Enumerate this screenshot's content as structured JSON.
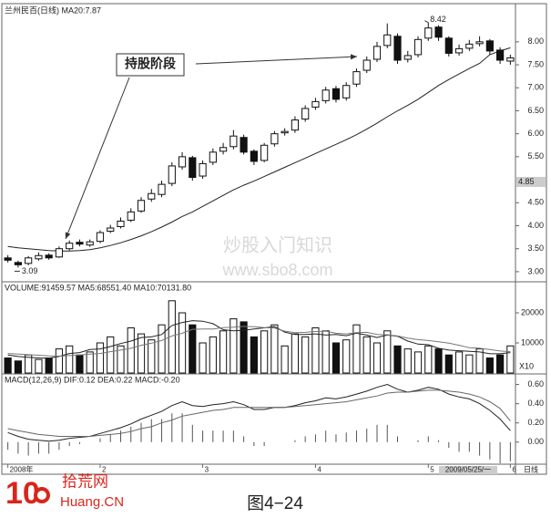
{
  "chart_data": [
    {
      "type": "candlestick",
      "title": "兰州民百(日线) MA20:7.87",
      "open": [
        3.3,
        3.2,
        3.18,
        3.28,
        3.36,
        3.32,
        3.5,
        3.64,
        3.58,
        3.66,
        3.88,
        3.98,
        4.12,
        4.32,
        4.58,
        4.68,
        4.92,
        5.28,
        5.48,
        5.08,
        5.38,
        5.62,
        5.72,
        5.92,
        5.62,
        5.42,
        5.78,
        6.02,
        6.08,
        6.32,
        6.58,
        6.72,
        6.98,
        6.78,
        7.08,
        7.38,
        7.62,
        7.92,
        8.12,
        7.62,
        7.72,
        8.08,
        8.32,
        8.08,
        7.76,
        7.86,
        7.96,
        8.02,
        7.82,
        7.58
      ],
      "high": [
        3.36,
        3.24,
        3.34,
        3.42,
        3.4,
        3.55,
        3.68,
        3.7,
        3.7,
        3.9,
        4.02,
        4.18,
        4.38,
        4.62,
        4.8,
        4.98,
        5.38,
        5.6,
        5.52,
        5.42,
        5.68,
        5.8,
        6.08,
        5.98,
        5.66,
        5.8,
        6.06,
        6.12,
        6.38,
        6.62,
        6.78,
        7.02,
        7.04,
        7.12,
        7.42,
        7.68,
        8.0,
        8.4,
        8.18,
        7.8,
        8.12,
        8.42,
        8.36,
        8.12,
        7.94,
        8.04,
        8.12,
        8.06,
        7.88,
        7.72
      ],
      "low": [
        3.2,
        3.09,
        3.14,
        3.24,
        3.26,
        3.3,
        3.46,
        3.55,
        3.54,
        3.62,
        3.84,
        3.94,
        4.08,
        4.28,
        4.52,
        4.62,
        4.86,
        5.22,
        4.98,
        5.02,
        5.32,
        5.55,
        5.66,
        5.55,
        5.32,
        5.38,
        5.72,
        5.96,
        6.02,
        6.26,
        6.52,
        6.66,
        6.68,
        6.72,
        7.02,
        7.32,
        7.56,
        7.86,
        7.52,
        7.55,
        7.66,
        8.02,
        8.02,
        7.68,
        7.7,
        7.8,
        7.9,
        7.72,
        7.52,
        7.5
      ],
      "close": [
        3.25,
        3.15,
        3.3,
        3.35,
        3.3,
        3.5,
        3.62,
        3.6,
        3.65,
        3.85,
        3.95,
        4.1,
        4.3,
        4.55,
        4.7,
        4.9,
        5.3,
        5.5,
        5.05,
        5.35,
        5.6,
        5.7,
        5.95,
        5.6,
        5.4,
        5.75,
        6.0,
        6.05,
        6.3,
        6.55,
        6.7,
        6.95,
        6.75,
        7.05,
        7.35,
        7.6,
        7.9,
        8.15,
        7.6,
        7.7,
        8.05,
        8.3,
        8.1,
        7.75,
        7.85,
        7.95,
        8.0,
        7.8,
        7.6,
        7.65
      ],
      "series": [
        {
          "color": "#222222",
          "values": [
            3.55,
            3.52,
            3.5,
            3.48,
            3.46,
            3.45,
            3.45,
            3.46,
            3.48,
            3.52,
            3.57,
            3.63,
            3.7,
            3.78,
            3.87,
            3.97,
            4.08,
            4.2,
            4.3,
            4.42,
            4.54,
            4.66,
            4.78,
            4.88,
            4.97,
            5.07,
            5.17,
            5.27,
            5.37,
            5.47,
            5.57,
            5.67,
            5.77,
            5.87,
            5.98,
            6.1,
            6.23,
            6.37,
            6.5,
            6.62,
            6.75,
            6.9,
            7.05,
            7.18,
            7.3,
            7.42,
            7.53,
            7.72,
            7.8,
            7.87
          ]
        }
      ],
      "up_color": "#ffffff",
      "down_color": "#111111",
      "ylim": [
        2.8,
        8.79
      ],
      "yticks": [
        {
          "value": 3,
          "label": "3.00"
        },
        {
          "value": 3.5,
          "label": "3.50"
        },
        {
          "value": 4,
          "label": "4.00"
        },
        {
          "value": 4.5,
          "label": "4.50"
        },
        {
          "value": 5.5,
          "label": "5.50"
        },
        {
          "value": 6,
          "label": "6.00"
        },
        {
          "value": 6.5,
          "label": "6.50"
        },
        {
          "value": 7,
          "label": "7.00"
        },
        {
          "value": 7.5,
          "label": "7.50"
        },
        {
          "value": 8,
          "label": "8.00"
        }
      ],
      "price_marker": 4.85,
      "annotation": "持股阶段",
      "watermark": [
        "炒股入门知识",
        "www.sbo8.com"
      ]
    },
    {
      "type": "bar",
      "title": "VOLUME:91459.57 MA5:68551.40 MA10:70131.80",
      "values": [
        5000,
        4000,
        6000,
        4500,
        5000,
        8000,
        9000,
        6000,
        7000,
        10000,
        12000,
        9000,
        15000,
        13000,
        11000,
        16000,
        24000,
        20000,
        16000,
        10000,
        12000,
        14000,
        18000,
        17000,
        12000,
        14000,
        16000,
        9000,
        13000,
        12000,
        15000,
        14000,
        10000,
        11000,
        16000,
        12000,
        10000,
        14000,
        9000,
        8000,
        7000,
        9000,
        8000,
        6000,
        7000,
        6000,
        8000,
        5000,
        6000,
        9000
      ],
      "series": [
        {
          "color": "#222222",
          "values": [
            6000,
            5500,
            5200,
            5000,
            4900,
            5500,
            6500,
            6800,
            7800,
            8000,
            8800,
            9800,
            10600,
            11800,
            12000,
            12800,
            15800,
            16800,
            17400,
            17200,
            16400,
            14400,
            14000,
            14200,
            14600,
            15000,
            15400,
            13600,
            12800,
            12800,
            13000,
            12600,
            12800,
            12400,
            13200,
            12600,
            11800,
            12600,
            12200,
            10600,
            9600,
            9400,
            8200,
            7600,
            7400,
            7200,
            7000,
            6400,
            6400,
            6800
          ]
        },
        {
          "color": "#777777",
          "values": [
            6500,
            6300,
            6100,
            5900,
            5700,
            5600,
            5800,
            6000,
            6300,
            6500,
            7100,
            7600,
            8200,
            9200,
            9900,
            10800,
            12300,
            13200,
            14500,
            14600,
            14600,
            15100,
            15200,
            15500,
            15400,
            15100,
            14900,
            13900,
            13400,
            13500,
            13800,
            13900,
            13200,
            13000,
            13400,
            13500,
            12800,
            12700,
            12300,
            11600,
            11100,
            10800,
            10400,
            9900,
            9200,
            8400,
            8200,
            7800,
            7300,
            7100
          ]
        }
      ],
      "ylim": [
        0,
        30000
      ],
      "yticks": [
        10000,
        20000
      ],
      "unit_label": "X10"
    },
    {
      "type": "macd",
      "title": "MACD(12,26,9) DIF:0.12 DEA:0.22 MACD:-0.20",
      "histogram": [
        -0.08,
        -0.12,
        -0.14,
        -0.12,
        -0.12,
        -0.08,
        -0.04,
        -0.02,
        0.0,
        0.04,
        0.08,
        0.12,
        0.16,
        0.2,
        0.24,
        0.24,
        0.3,
        0.3,
        0.18,
        0.12,
        0.12,
        0.12,
        0.12,
        0.06,
        -0.04,
        -0.04,
        0.0,
        0.0,
        0.02,
        0.06,
        0.08,
        0.12,
        0.08,
        0.1,
        0.12,
        0.14,
        0.18,
        0.18,
        0.06,
        0.0,
        0.02,
        0.06,
        0.02,
        -0.06,
        -0.1,
        -0.1,
        -0.14,
        -0.18,
        -0.22,
        -0.2
      ],
      "series": [
        {
          "color": "#222222",
          "values": [
            0.1,
            0.06,
            0.03,
            0.02,
            0.01,
            0.02,
            0.04,
            0.05,
            0.06,
            0.09,
            0.12,
            0.15,
            0.19,
            0.24,
            0.28,
            0.32,
            0.38,
            0.42,
            0.38,
            0.37,
            0.39,
            0.4,
            0.42,
            0.39,
            0.34,
            0.34,
            0.36,
            0.36,
            0.38,
            0.41,
            0.43,
            0.46,
            0.45,
            0.47,
            0.5,
            0.53,
            0.57,
            0.6,
            0.55,
            0.52,
            0.54,
            0.57,
            0.55,
            0.5,
            0.47,
            0.45,
            0.4,
            0.33,
            0.24,
            0.12
          ]
        },
        {
          "color": "#666666",
          "values": [
            0.14,
            0.12,
            0.1,
            0.08,
            0.07,
            0.06,
            0.06,
            0.06,
            0.06,
            0.07,
            0.08,
            0.09,
            0.11,
            0.14,
            0.16,
            0.2,
            0.23,
            0.27,
            0.29,
            0.31,
            0.33,
            0.34,
            0.36,
            0.36,
            0.36,
            0.36,
            0.36,
            0.36,
            0.37,
            0.38,
            0.39,
            0.4,
            0.41,
            0.42,
            0.44,
            0.46,
            0.48,
            0.51,
            0.52,
            0.52,
            0.53,
            0.54,
            0.54,
            0.53,
            0.52,
            0.5,
            0.47,
            0.42,
            0.35,
            0.22
          ]
        }
      ],
      "ylim": [
        -0.22,
        0.7
      ],
      "yticks": [
        {
          "value": 0,
          "label": "0.00"
        },
        {
          "value": 0.2,
          "label": "0.20"
        },
        {
          "value": 0.4,
          "label": "0.40"
        },
        {
          "value": 0.6,
          "label": "0.60"
        }
      ],
      "categories": [
        "2008年",
        null,
        null,
        null,
        null,
        null,
        null,
        null,
        null,
        "2",
        null,
        null,
        null,
        null,
        null,
        null,
        null,
        null,
        null,
        "3",
        null,
        null,
        null,
        null,
        null,
        null,
        null,
        null,
        null,
        null,
        "4",
        null,
        null,
        null,
        null,
        null,
        null,
        null,
        null,
        null,
        null,
        "5",
        null,
        null,
        null,
        null,
        null,
        null,
        null,
        "6"
      ],
      "cursor_label": "2009/05/25/一",
      "period_label": "日线"
    }
  ],
  "logo": {
    "number": "10",
    "name": "拾荒网",
    "site": "Huang.CN"
  },
  "caption": "图4−24"
}
